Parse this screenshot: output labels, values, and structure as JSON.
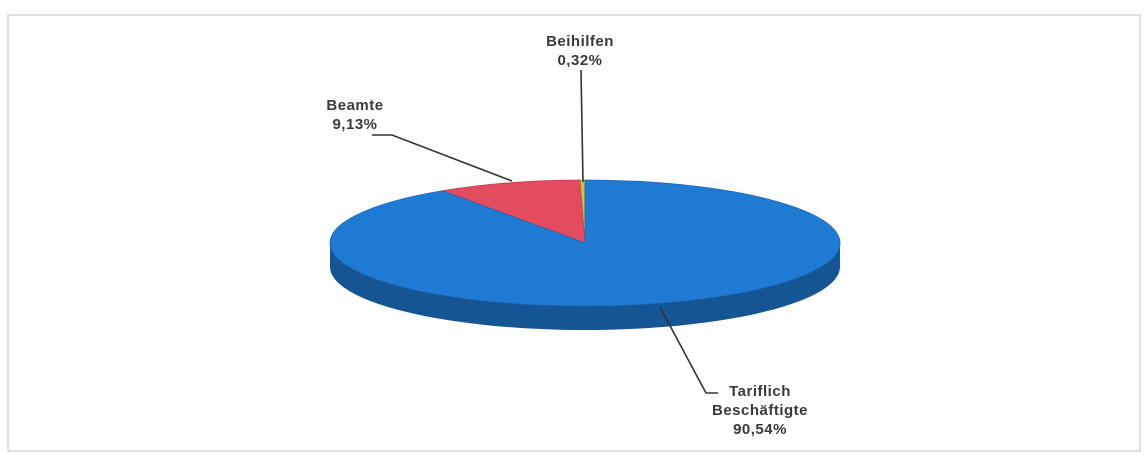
{
  "chart_data": {
    "type": "pie3d",
    "categories": [
      "Beihilfen",
      "Beamte",
      "Tariflich Beschäftigte"
    ],
    "values": [
      0.32,
      9.13,
      90.54
    ],
    "value_labels": [
      "0,32%",
      "9,13%",
      "90,54%"
    ],
    "colors": [
      "#c9c43a",
      "#e24c5e",
      "#1f7ad4"
    ]
  }
}
